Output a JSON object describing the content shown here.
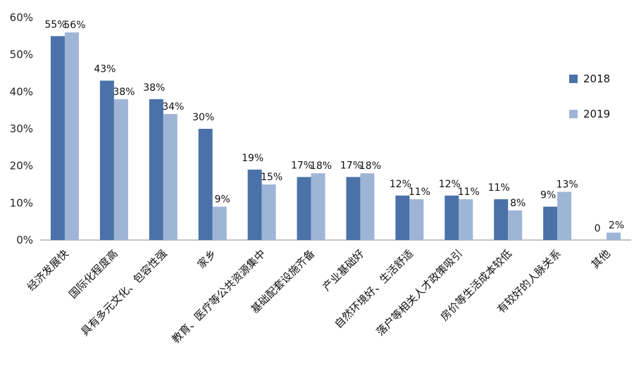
{
  "chart_data": {
    "type": "bar",
    "categories": [
      "经济发展快",
      "国际化程度高",
      "具有多元文化、包容性强",
      "家乡",
      "教育、医疗等公共资源集中",
      "基础配套设施齐备",
      "产业基础好",
      "自然环境好、生活舒适",
      "落户等相关人才政策吸引",
      "房价等生活成本较低",
      "有较好的人脉关系",
      "其他"
    ],
    "series": [
      {
        "name": "2018",
        "values": [
          55,
          43,
          38,
          30,
          19,
          17,
          17,
          12,
          12,
          11,
          9,
          0
        ],
        "labels": [
          "55%",
          "43%",
          "38%",
          "30%",
          "19%",
          "17%",
          "17%",
          "12%",
          "12%",
          "11%",
          "9%",
          "0"
        ],
        "color": "#4a72a8"
      },
      {
        "name": "2019",
        "values": [
          56,
          38,
          34,
          9,
          15,
          18,
          18,
          11,
          11,
          8,
          13,
          2
        ],
        "labels": [
          "56%",
          "38%",
          "34%",
          "9%",
          "15%",
          "18%",
          "18%",
          "11%",
          "11%",
          "8%",
          "13%",
          "2%"
        ],
        "color": "#9fb5d6"
      }
    ],
    "yticks": [
      "0%",
      "10%",
      "20%",
      "30%",
      "40%",
      "50%",
      "60%"
    ],
    "ylim": [
      0,
      60
    ],
    "grid": false,
    "legend": "right"
  }
}
